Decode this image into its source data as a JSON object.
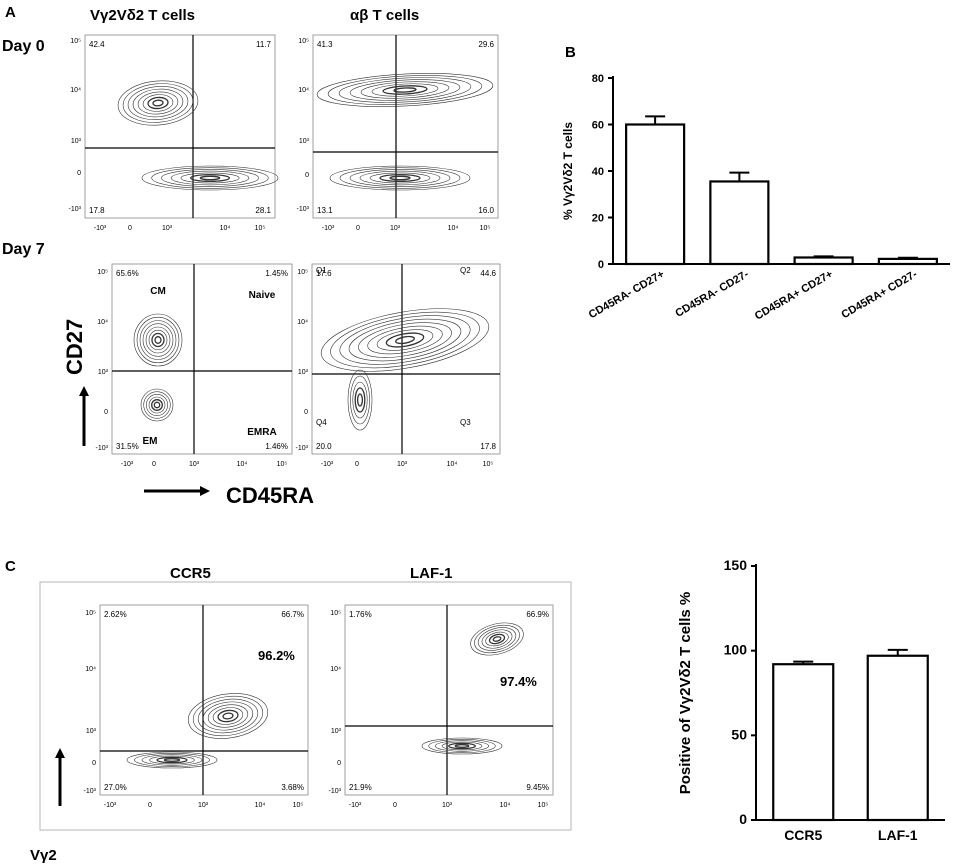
{
  "panelA": {
    "letter": "A",
    "col_titles": [
      "Vγ2Vδ2 T cells",
      "αβ T cells"
    ],
    "row_titles": [
      "Day 0",
      "Day 7"
    ],
    "y_axis_label": "CD27",
    "x_axis_label": "CD45RA",
    "plots": [
      {
        "id": "a-d0-vg",
        "quadrants": {
          "ul": "42.4",
          "ur": "11.7",
          "ll": "17.8",
          "lr": "28.1"
        }
      },
      {
        "id": "a-d0-ab",
        "quadrants": {
          "ul": "41.3",
          "ur": "29.6",
          "ll": "13.1",
          "lr": "16.0"
        }
      },
      {
        "id": "a-d7-vg",
        "quadrants": {
          "ul": "65.6%",
          "ur": "1.45%",
          "ll": "31.5%",
          "lr": "1.46%"
        },
        "gate_labels": {
          "ul": "CM",
          "ur": "Naive",
          "ll": "EM",
          "lr": "EMRA"
        }
      },
      {
        "id": "a-d7-ab",
        "quadrants": {
          "ul": "17.6",
          "ur": "44.6",
          "ll": "20.0",
          "lr": "17.8"
        },
        "quadrant_names": {
          "ul": "Q1",
          "ur": "Q2",
          "ll": "Q4",
          "lr": "Q3"
        }
      }
    ]
  },
  "panelB": {
    "letter": "B",
    "chart_data": {
      "type": "bar",
      "categories": [
        "CD45RA- CD27+",
        "CD45RA- CD27-",
        "CD45RA+ CD27+",
        "CD45RA+ CD27-"
      ],
      "values": [
        60,
        35.5,
        2.8,
        2.2
      ],
      "errors": [
        3.5,
        3.8,
        0.5,
        0.5
      ],
      "ylabel": "% Vγ2Vδ2 T cells",
      "ylim": [
        0,
        80
      ],
      "yticks": [
        "0",
        "20",
        "40",
        "60",
        "80"
      ]
    }
  },
  "panelC": {
    "letter": "C",
    "titles": [
      "CCR5",
      "LAF-1"
    ],
    "y_axis_label": "Vγ2",
    "plots": [
      {
        "id": "c-ccr5",
        "quadrants": {
          "ul": "2.62%",
          "ur": "66.7%",
          "ll": "27.0%",
          "lr": "3.68%"
        },
        "big_pct": "96.2%"
      },
      {
        "id": "c-laf1",
        "quadrants": {
          "ul": "1.76%",
          "ur": "66.9%",
          "ll": "21.9%",
          "lr": "9.45%"
        },
        "big_pct": "97.4%"
      }
    ],
    "chart_data": {
      "type": "bar",
      "categories": [
        "CCR5",
        "LAF-1"
      ],
      "values": [
        92,
        97
      ],
      "errors": [
        1.5,
        3.5
      ],
      "ylabel": "Positive of Vγ2Vδ2 T cells %",
      "ylim": [
        0,
        150
      ],
      "yticks": [
        "0",
        "50",
        "100",
        "150"
      ]
    }
  },
  "flow_axis_ticks": {
    "x": [
      "-10³",
      "0",
      "10³",
      "10⁴",
      "10⁵"
    ],
    "y": [
      "10⁵",
      "10⁴",
      "10³",
      "0",
      "-10³"
    ]
  }
}
